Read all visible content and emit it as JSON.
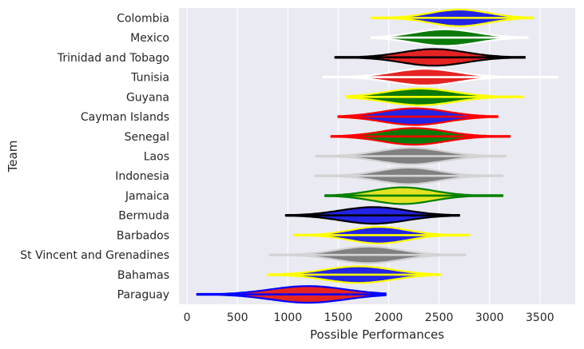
{
  "chart_data": {
    "type": "violin",
    "orientation": "horizontal",
    "xlabel": "Possible Performances",
    "ylabel": "Team",
    "xlim": [
      -80,
      3850
    ],
    "xticks": [
      0,
      500,
      1000,
      1500,
      2000,
      2500,
      3000,
      3500
    ],
    "grid": true,
    "background": "#EAEAF2",
    "categories": [
      "Colombia",
      "Mexico",
      "Trinidad and Tobago",
      "Tunisia",
      "Guyana",
      "Cayman Islands",
      "Senegal",
      "Laos",
      "Indonesia",
      "Jamaica",
      "Bermuda",
      "Barbados",
      "St Vincent and Grenadines",
      "Bahamas",
      "Paraguay"
    ],
    "series": [
      {
        "team": "Colombia",
        "fill": "#2323E3",
        "edge": "#FFFF00",
        "min": 1830,
        "q1": 2500,
        "median": 2700,
        "q3": 2880,
        "max": 3430
      },
      {
        "team": "Mexico",
        "fill": "#0A7A0A",
        "edge": "#FFFFFF",
        "min": 1830,
        "q1": 2350,
        "median": 2560,
        "q3": 2770,
        "max": 3380
      },
      {
        "team": "Trinidad and Tobago",
        "fill": "#E52323",
        "edge": "#000000",
        "min": 1470,
        "q1": 2230,
        "median": 2450,
        "q3": 2660,
        "max": 3350
      },
      {
        "team": "Tunisia",
        "fill": "#E52323",
        "edge": "#FFFFFF",
        "min": 1350,
        "q1": 2140,
        "median": 2360,
        "q3": 2570,
        "max": 3680
      },
      {
        "team": "Guyana",
        "fill": "#0A7A0A",
        "edge": "#FFFF00",
        "min": 1580,
        "q1": 2080,
        "median": 2310,
        "q3": 2530,
        "max": 3330
      },
      {
        "team": "Cayman Islands",
        "fill": "#2323E3",
        "edge": "#FF0000",
        "min": 1500,
        "q1": 2050,
        "median": 2260,
        "q3": 2480,
        "max": 3080
      },
      {
        "team": "Senegal",
        "fill": "#0A7A0A",
        "edge": "#FF0000",
        "min": 1430,
        "q1": 2030,
        "median": 2250,
        "q3": 2450,
        "max": 3200
      },
      {
        "team": "Laos",
        "fill": "#808080",
        "edge": "#D3D3D3",
        "min": 1280,
        "q1": 2000,
        "median": 2220,
        "q3": 2430,
        "max": 3160
      },
      {
        "team": "Indonesia",
        "fill": "#808080",
        "edge": "#D3D3D3",
        "min": 1270,
        "q1": 2000,
        "median": 2200,
        "q3": 2400,
        "max": 3130
      },
      {
        "team": "Jamaica",
        "fill": "#E3E323",
        "edge": "#008000",
        "min": 1370,
        "q1": 1960,
        "median": 2140,
        "q3": 2360,
        "max": 3130
      },
      {
        "team": "Bermuda",
        "fill": "#2323E3",
        "edge": "#000000",
        "min": 980,
        "q1": 1640,
        "median": 1850,
        "q3": 2080,
        "max": 2700
      },
      {
        "team": "Barbados",
        "fill": "#2323E3",
        "edge": "#FFFF00",
        "min": 1060,
        "q1": 1720,
        "median": 1900,
        "q3": 2100,
        "max": 2800
      },
      {
        "team": "St Vincent and Grenadines",
        "fill": "#808080",
        "edge": "#D3D3D3",
        "min": 820,
        "q1": 1580,
        "median": 1800,
        "q3": 2000,
        "max": 2760
      },
      {
        "team": "Bahamas",
        "fill": "#2323E3",
        "edge": "#FFFF00",
        "min": 800,
        "q1": 1480,
        "median": 1700,
        "q3": 1930,
        "max": 2510
      },
      {
        "team": "Paraguay",
        "fill": "#E52323",
        "edge": "#0000FF",
        "min": 100,
        "q1": 950,
        "median": 1200,
        "q3": 1450,
        "max": 1970
      }
    ]
  }
}
